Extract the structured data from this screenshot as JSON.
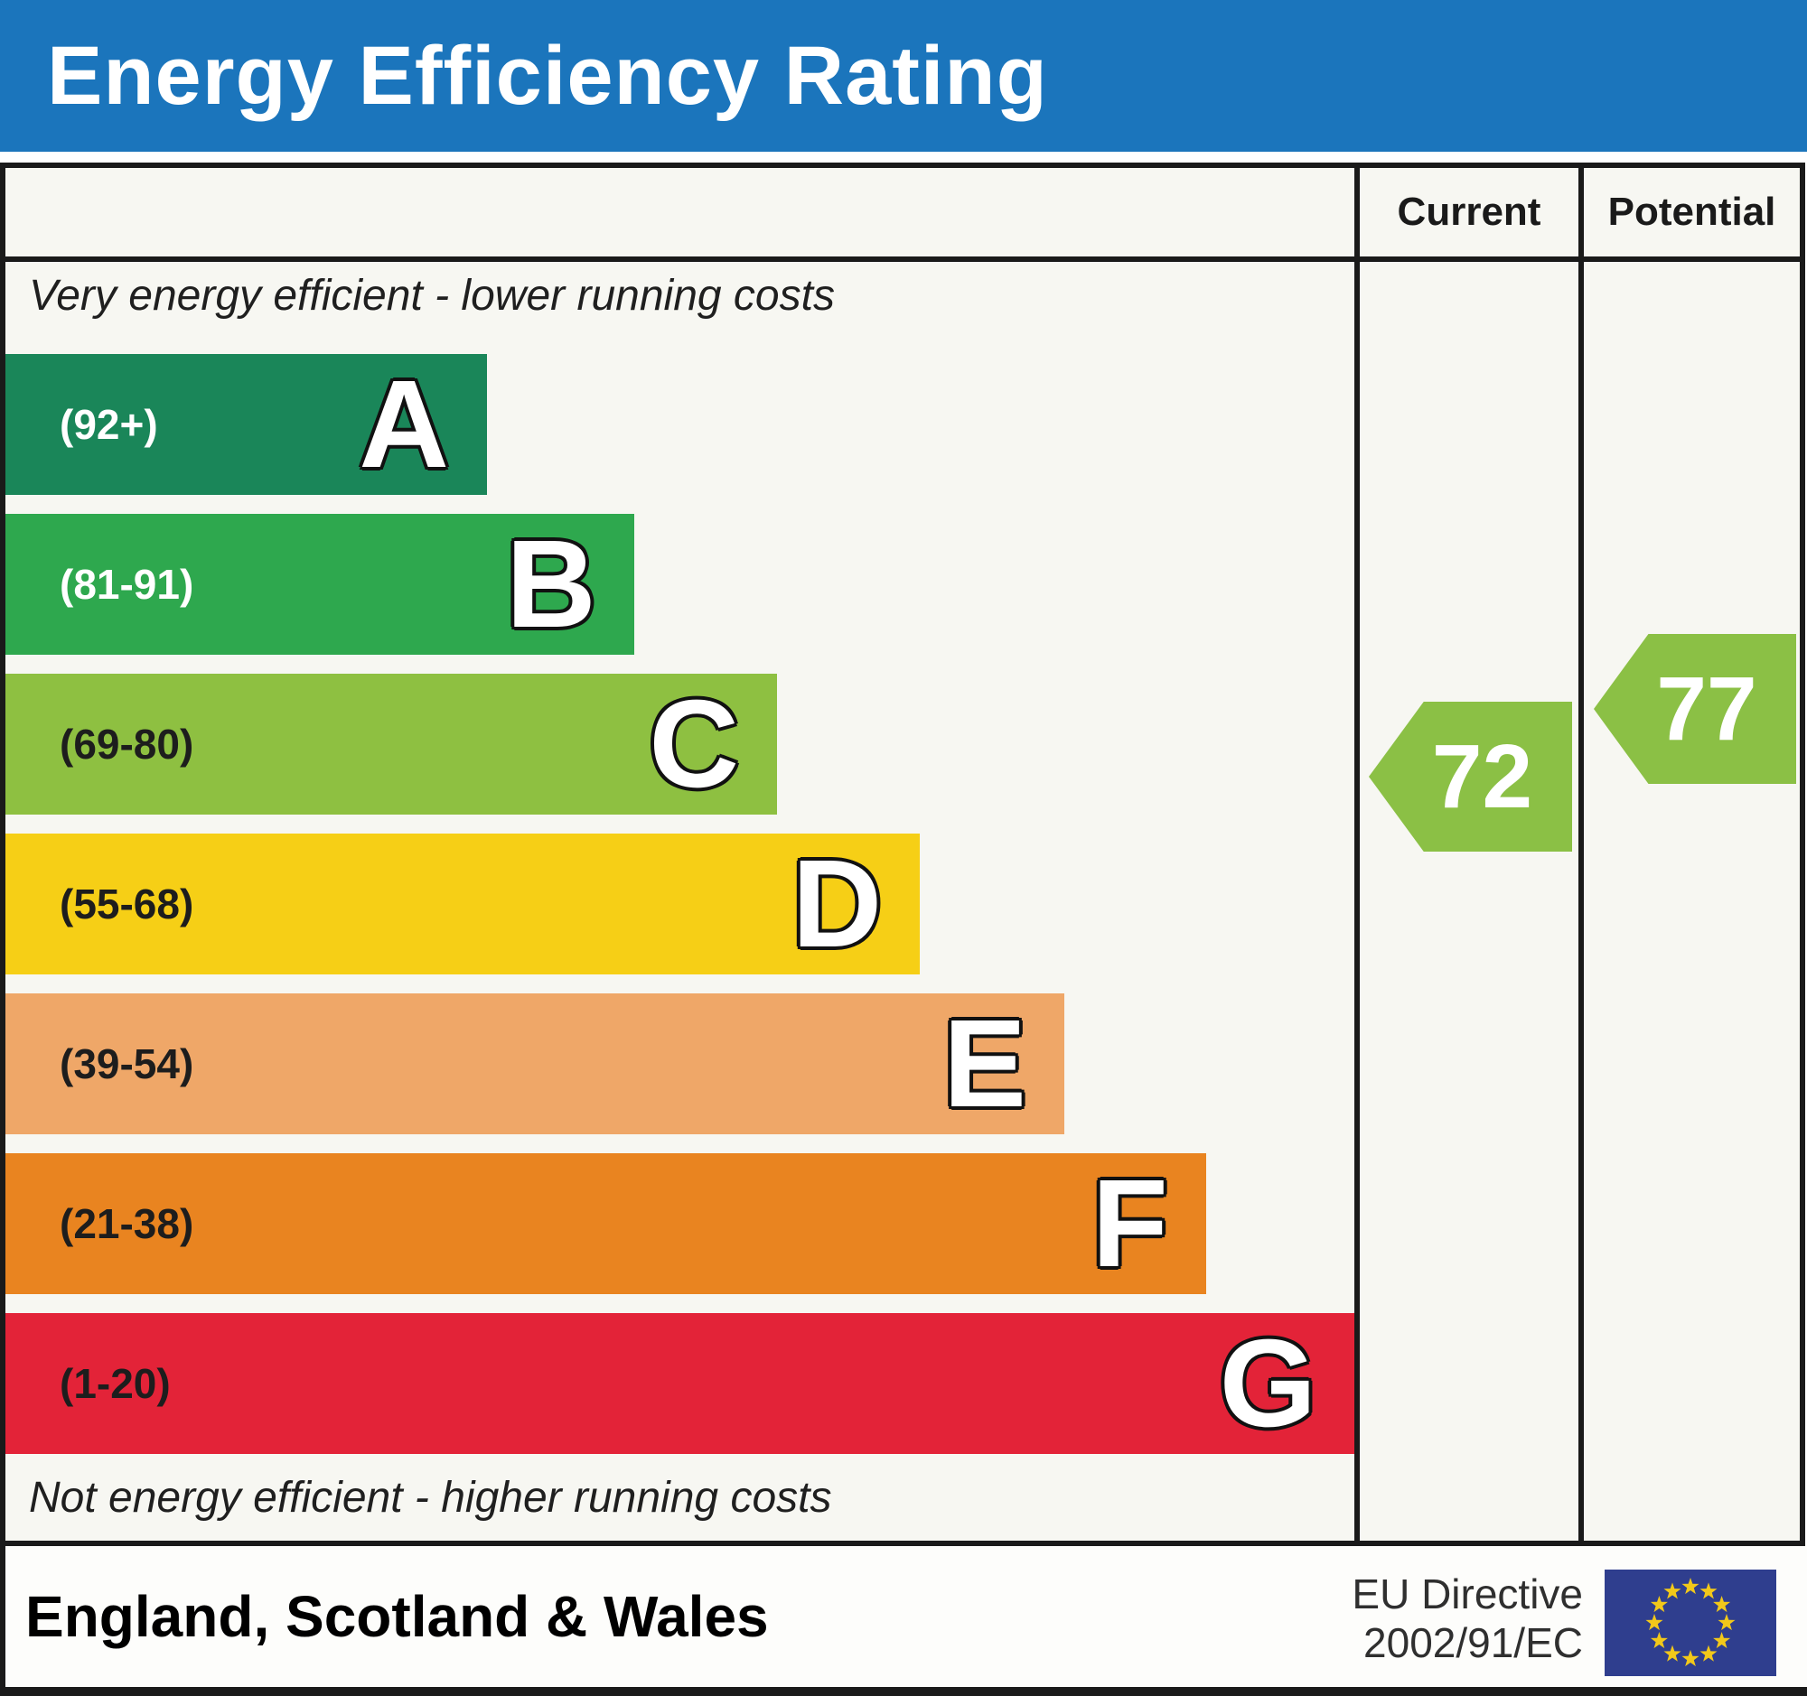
{
  "banner": {
    "title": "Energy Efficiency Rating"
  },
  "header": {
    "current_label": "Current",
    "potential_label": "Potential"
  },
  "notes": {
    "top": "Very energy efficient - lower running costs",
    "bottom": "Not energy efficient - higher running costs"
  },
  "footer": {
    "region_label": "England, Scotland & Wales",
    "eu_directive_line1": "EU Directive",
    "eu_directive_line2": "2002/91/EC"
  },
  "colors": {
    "banner_background": "#1b75bc",
    "banner_text": "#ffffff",
    "table_border": "#1a1a1a",
    "table_background": "#f7f7f2",
    "eu_flag_background": "#2f3e8e",
    "eu_flag_stars": "#f2c81a"
  },
  "chart_data": {
    "type": "bar",
    "orientation": "horizontal",
    "title": "Energy Efficiency Rating",
    "categories": [
      "A",
      "B",
      "C",
      "D",
      "E",
      "F",
      "G"
    ],
    "bands": [
      {
        "letter": "A",
        "range_label": "(92+)",
        "score_min": 92,
        "score_max": 100,
        "color": "#1a8659",
        "width_pct": 35.7,
        "range_label_color": "#ffffff"
      },
      {
        "letter": "B",
        "range_label": "(81-91)",
        "score_min": 81,
        "score_max": 91,
        "color": "#2ea84e",
        "width_pct": 46.6,
        "range_label_color": "#ffffff"
      },
      {
        "letter": "C",
        "range_label": "(69-80)",
        "score_min": 69,
        "score_max": 80,
        "color": "#8ec041",
        "width_pct": 57.2,
        "range_label_color": "#1d1d1d"
      },
      {
        "letter": "D",
        "range_label": "(55-68)",
        "score_min": 55,
        "score_max": 68,
        "color": "#f6cf16",
        "width_pct": 67.8,
        "range_label_color": "#1d1d1d"
      },
      {
        "letter": "E",
        "range_label": "(39-54)",
        "score_min": 39,
        "score_max": 54,
        "color": "#efa768",
        "width_pct": 78.5,
        "range_label_color": "#1d1d1d"
      },
      {
        "letter": "F",
        "range_label": "(21-38)",
        "score_min": 21,
        "score_max": 38,
        "color": "#e98420",
        "width_pct": 89.0,
        "range_label_color": "#1d1d1d"
      },
      {
        "letter": "G",
        "range_label": "(1-20)",
        "score_min": 1,
        "score_max": 20,
        "color": "#e32338",
        "width_pct": 100,
        "range_label_color": "#1d1d1d"
      }
    ],
    "current": {
      "value": "72",
      "band": "C",
      "arrow_color": "#8bc045"
    },
    "potential": {
      "value": "77",
      "band": "C",
      "arrow_color": "#8bc045"
    }
  }
}
